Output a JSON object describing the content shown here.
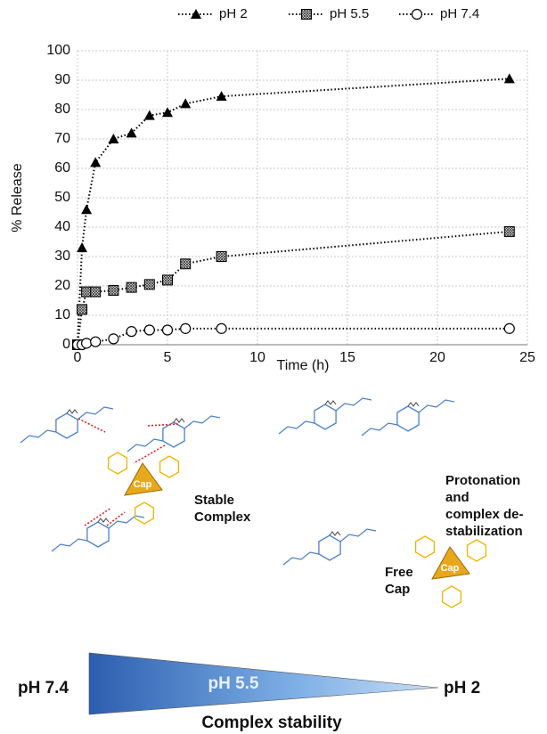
{
  "chart_data": {
    "type": "line",
    "x": [
      0,
      0.25,
      0.5,
      1,
      2,
      3,
      4,
      5,
      6,
      8,
      24
    ],
    "series": [
      {
        "name": "pH 2",
        "color": "#000000",
        "marker": "triangle",
        "values": [
          0,
          33,
          46,
          62,
          70,
          72,
          78,
          79,
          82,
          84.5,
          90.5
        ]
      },
      {
        "name": "pH 5.5",
        "color": "#000000",
        "marker": "hatched-square",
        "values": [
          0,
          12,
          18,
          18,
          18.5,
          19.5,
          20.5,
          22,
          27.5,
          30,
          38.5
        ]
      },
      {
        "name": "pH 7.4",
        "color": "#000000",
        "marker": "open-circle",
        "values": [
          0,
          0,
          0.5,
          1,
          2,
          4.5,
          5,
          5,
          5.5,
          5.5,
          5.5
        ]
      }
    ],
    "xlabel": "Time (h)",
    "ylabel": "% Release",
    "xlim": [
      0,
      25
    ],
    "xticks": [
      0,
      5,
      10,
      15,
      20,
      25
    ],
    "ylim": [
      0,
      100
    ],
    "yticks": [
      0,
      10,
      20,
      30,
      40,
      50,
      60,
      70,
      80,
      90,
      100
    ],
    "grid": true,
    "legend": "top"
  },
  "diagram": {
    "stable_label": [
      "Stable",
      "Complex"
    ],
    "protonation_label": [
      "Protonation",
      "and",
      "complex de-",
      "stabilization"
    ],
    "free_cap_label": [
      "Free",
      "Cap"
    ],
    "cap_labels": [
      "Cap",
      "Cap"
    ],
    "scale_left": "pH 7.4",
    "scale_middle": "pH 5.5",
    "scale_right": "pH 2",
    "scale_title": "Complex stability"
  }
}
